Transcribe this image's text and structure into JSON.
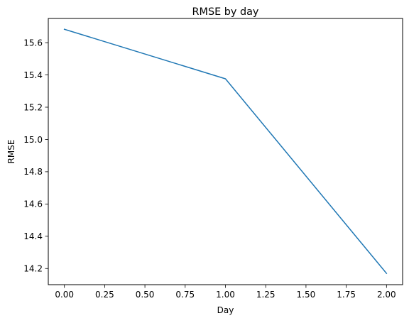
{
  "chart_data": {
    "type": "line",
    "title": "RMSE by day",
    "xlabel": "Day",
    "ylabel": "RMSE",
    "xlim": [
      -0.1,
      2.1
    ],
    "ylim": [
      14.1,
      15.75
    ],
    "xticks": [
      0.0,
      0.25,
      0.5,
      0.75,
      1.0,
      1.25,
      1.5,
      1.75,
      2.0
    ],
    "xtick_labels": [
      "0.00",
      "0.25",
      "0.50",
      "0.75",
      "1.00",
      "1.25",
      "1.50",
      "1.75",
      "2.00"
    ],
    "yticks": [
      14.2,
      14.4,
      14.6,
      14.8,
      15.0,
      15.2,
      15.4,
      15.6
    ],
    "ytick_labels": [
      "14.2",
      "14.4",
      "14.6",
      "14.8",
      "15.0",
      "15.2",
      "15.4",
      "15.6"
    ],
    "grid": false,
    "legend": "none",
    "series": [
      {
        "x": [
          0,
          1,
          2
        ],
        "y": [
          15.683,
          15.376,
          14.17
        ],
        "color": "#1f77b4"
      }
    ]
  }
}
